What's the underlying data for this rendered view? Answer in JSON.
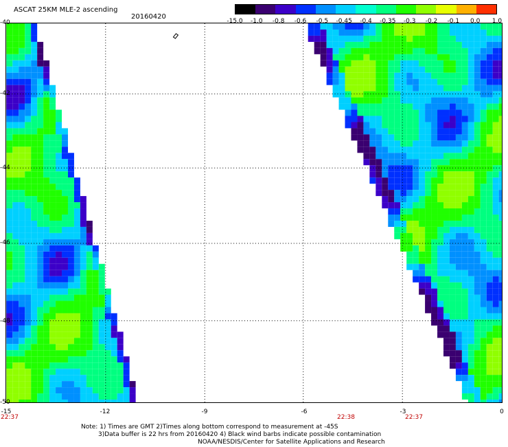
{
  "title": "ASCAT 25KM MLE-2 ascending",
  "date": "20160420",
  "colorbar": {
    "labels": [
      "-15.0",
      "-1.0",
      "-0.8",
      "-0.6",
      "-0.5",
      "-0.45",
      "-0.4",
      "-0.35",
      "-0.3",
      "-0.2",
      "-0.1",
      "0.0",
      "1.0"
    ],
    "colors": [
      "#000000",
      "#3a0070",
      "#3c00c8",
      "#0030ff",
      "#0090ff",
      "#00d0ff",
      "#00ffd0",
      "#00ff80",
      "#20ff00",
      "#90ff00",
      "#e8ff00",
      "#ffb000",
      "#ff3000"
    ]
  },
  "axes": {
    "lat_labels": [
      "-40",
      "-42",
      "-44",
      "-46",
      "-48",
      "-50"
    ],
    "lon_labels": [
      "-15",
      "-12",
      "-9",
      "-6",
      "-3",
      "0"
    ],
    "time_labels": [
      "22:37",
      "22:38",
      "22:37"
    ]
  },
  "notes": [
    "Note: 1) Times are GMT 2)Times along bottom correspond to measurement at -45S",
    "3)Data buffer is 22 hrs from 20160420 4) Black wind barbs indicate possible contamination",
    "NOAA/NESDIS/Center for Satellite Applications and Research"
  ]
}
